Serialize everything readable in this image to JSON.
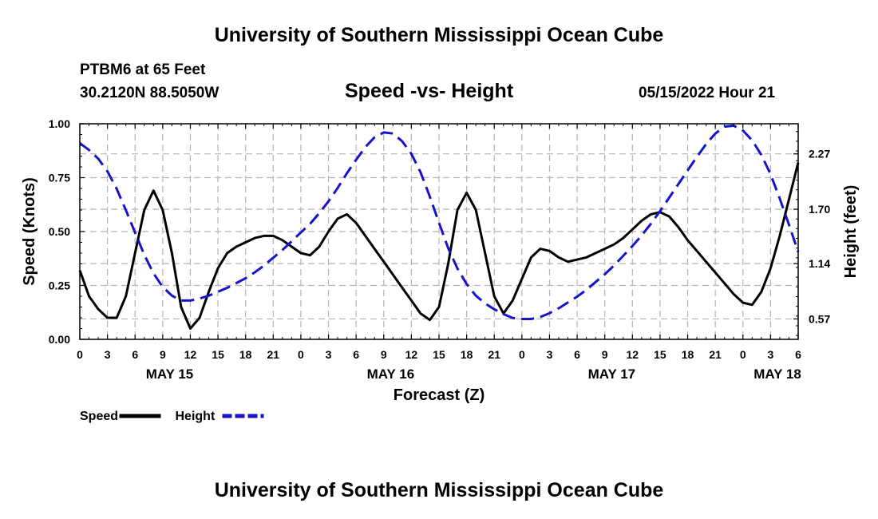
{
  "header": {
    "title": "University of Southern Mississippi Ocean Cube",
    "station": "PTBM6 at 65 Feet",
    "coords": "30.2120N  88.5050W",
    "subtitle": "Speed -vs- Height",
    "datetime": "05/15/2022 Hour 21"
  },
  "footer": {
    "title": "University of Southern Mississippi Ocean Cube"
  },
  "colors": {
    "speed": "#000000",
    "height": "#1414c8",
    "grid": "#b4b4b4"
  },
  "chart_data": {
    "type": "line",
    "xlabel": "Forecast (Z)",
    "ylabel": "Speed (Knots)",
    "ylabel2": "Height (feet)",
    "xlim": [
      0,
      78
    ],
    "ylim": [
      0,
      1
    ],
    "ylim2": [
      0.36,
      2.58
    ],
    "x_ticks": [
      0,
      3,
      6,
      9,
      12,
      15,
      18,
      21,
      24,
      27,
      30,
      33,
      36,
      39,
      42,
      45,
      48,
      51,
      54,
      57,
      60,
      63,
      66,
      69,
      72,
      75,
      78
    ],
    "x_tick_labels": [
      "0",
      "3",
      "6",
      "9",
      "12",
      "15",
      "18",
      "21",
      "0",
      "3",
      "6",
      "9",
      "12",
      "15",
      "18",
      "21",
      "0",
      "3",
      "6",
      "9",
      "12",
      "15",
      "18",
      "21",
      "0",
      "3",
      "6"
    ],
    "date_labels": [
      {
        "x": 9.75,
        "label": "MAY 15"
      },
      {
        "x": 33.75,
        "label": "MAY 16"
      },
      {
        "x": 57.75,
        "label": "MAY 17"
      },
      {
        "x": 75.75,
        "label": "MAY 18"
      }
    ],
    "y_ticks": [
      0,
      0.25,
      0.5,
      0.75,
      1.0
    ],
    "y_tick_labels": [
      "0.00",
      "0.25",
      "0.50",
      "0.75",
      "1.00"
    ],
    "y2_ticks": [
      0.57,
      1.14,
      1.7,
      2.27
    ],
    "y2_tick_labels": [
      "0.57",
      "1.14",
      "1.70",
      "2.27"
    ],
    "series": [
      {
        "name": "Speed",
        "axis": "left",
        "style": "solid",
        "x": [
          0,
          1,
          2,
          3,
          4,
          5,
          6,
          7,
          8,
          9,
          10,
          11,
          12,
          13,
          14,
          15,
          16,
          17,
          18,
          19,
          20,
          21,
          22,
          23,
          24,
          25,
          26,
          27,
          28,
          29,
          30,
          31,
          32,
          33,
          34,
          35,
          36,
          37,
          38,
          39,
          40,
          41,
          42,
          43,
          44,
          45,
          46,
          47,
          48,
          49,
          50,
          51,
          52,
          53,
          54,
          55,
          56,
          57,
          58,
          59,
          60,
          61,
          62,
          63,
          64,
          65,
          66,
          67,
          68,
          69,
          70,
          71,
          72,
          73,
          74,
          75,
          76,
          77,
          78
        ],
        "values": [
          0.32,
          0.2,
          0.14,
          0.1,
          0.1,
          0.2,
          0.4,
          0.6,
          0.69,
          0.6,
          0.4,
          0.15,
          0.05,
          0.1,
          0.22,
          0.33,
          0.4,
          0.43,
          0.45,
          0.47,
          0.48,
          0.48,
          0.46,
          0.43,
          0.4,
          0.39,
          0.43,
          0.5,
          0.56,
          0.58,
          0.54,
          0.48,
          0.42,
          0.36,
          0.3,
          0.24,
          0.18,
          0.12,
          0.09,
          0.15,
          0.35,
          0.6,
          0.68,
          0.6,
          0.4,
          0.2,
          0.12,
          0.18,
          0.28,
          0.38,
          0.42,
          0.41,
          0.38,
          0.36,
          0.37,
          0.38,
          0.4,
          0.42,
          0.44,
          0.47,
          0.51,
          0.55,
          0.58,
          0.59,
          0.57,
          0.52,
          0.46,
          0.41,
          0.36,
          0.31,
          0.26,
          0.21,
          0.17,
          0.16,
          0.22,
          0.33,
          0.48,
          0.65,
          0.82
        ]
      },
      {
        "name": "Height",
        "axis": "right",
        "style": "dashed",
        "x": [
          0,
          1,
          2,
          3,
          4,
          5,
          6,
          7,
          8,
          9,
          10,
          11,
          12,
          13,
          14,
          15,
          16,
          17,
          18,
          19,
          20,
          21,
          22,
          23,
          24,
          25,
          26,
          27,
          28,
          29,
          30,
          31,
          32,
          33,
          34,
          35,
          36,
          37,
          38,
          39,
          40,
          41,
          42,
          43,
          44,
          45,
          46,
          47,
          48,
          49,
          50,
          51,
          52,
          53,
          54,
          55,
          56,
          57,
          58,
          59,
          60,
          61,
          62,
          63,
          64,
          65,
          66,
          67,
          68,
          69,
          70,
          71,
          72,
          73,
          74,
          75,
          76,
          77,
          78
        ],
        "values": [
          2.38,
          2.31,
          2.22,
          2.09,
          1.91,
          1.69,
          1.46,
          1.23,
          1.04,
          0.9,
          0.81,
          0.76,
          0.76,
          0.78,
          0.81,
          0.85,
          0.89,
          0.94,
          0.99,
          1.05,
          1.12,
          1.2,
          1.28,
          1.37,
          1.46,
          1.55,
          1.66,
          1.78,
          1.92,
          2.07,
          2.21,
          2.34,
          2.44,
          2.49,
          2.48,
          2.4,
          2.27,
          2.08,
          1.83,
          1.56,
          1.3,
          1.09,
          0.93,
          0.81,
          0.73,
          0.67,
          0.62,
          0.58,
          0.57,
          0.57,
          0.59,
          0.63,
          0.68,
          0.74,
          0.8,
          0.87,
          0.95,
          1.03,
          1.12,
          1.22,
          1.32,
          1.43,
          1.55,
          1.68,
          1.82,
          1.96,
          2.1,
          2.24,
          2.37,
          2.48,
          2.55,
          2.56,
          2.51,
          2.41,
          2.26,
          2.06,
          1.81,
          1.54,
          1.26
        ]
      }
    ],
    "legend": [
      {
        "label": "Speed",
        "series": "Speed"
      },
      {
        "label": "Height",
        "series": "Height"
      }
    ],
    "legend_position": "bottom-left"
  }
}
